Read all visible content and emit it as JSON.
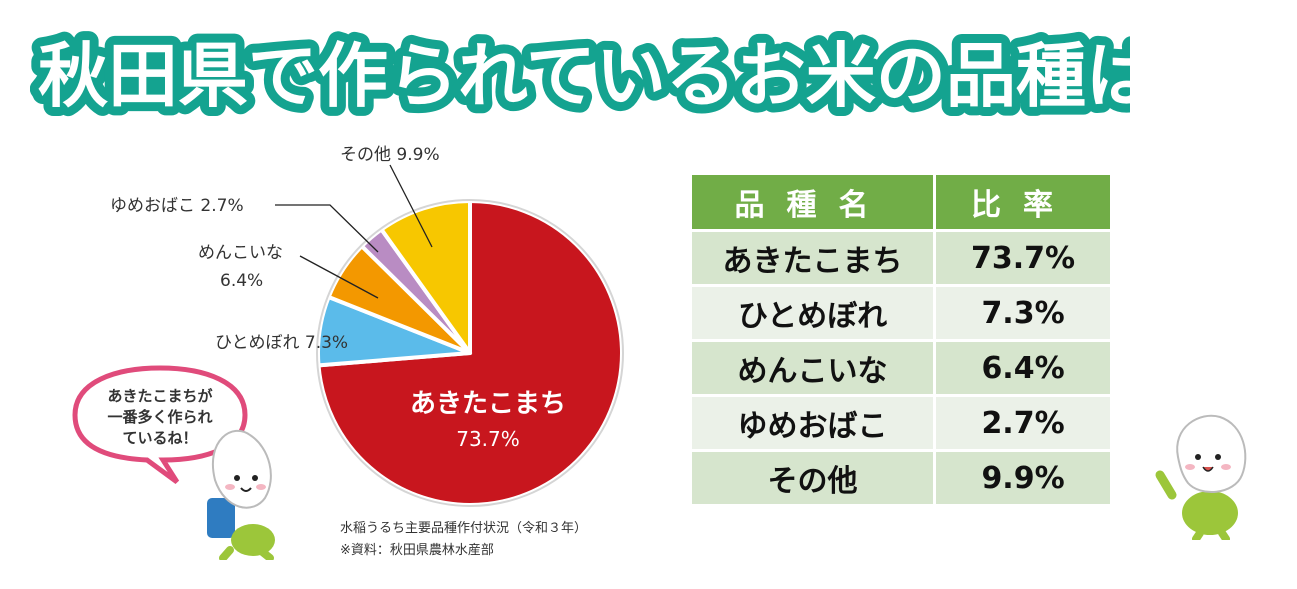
{
  "header": {
    "title": "秋田県で作られているお米の品種は？"
  },
  "chart_data": {
    "type": "pie",
    "slices": [
      {
        "label": "あきたこまち",
        "value": 73.7,
        "value_label": "73.7%",
        "color": "#c8161e"
      },
      {
        "label": "ひとめぼれ",
        "value": 7.3,
        "value_label": "7.3%",
        "color": "#5bbbea"
      },
      {
        "label": "めんこいな",
        "value": 6.4,
        "value_label": "6.4%",
        "color": "#f39800"
      },
      {
        "label": "ゆめおばこ",
        "value": 2.7,
        "value_label": "2.7%",
        "color": "#b98cc3"
      },
      {
        "label": "その他",
        "value": 9.9,
        "value_label": "9.9%",
        "color": "#f7c700"
      }
    ],
    "labels": {
      "akitakomachi_name": "あきたこまち",
      "akitakomachi_value": "73.7%",
      "hitomebore": "ひとめぼれ 7.3%",
      "menkoina_1": "めんこいな",
      "menkoina_2": "6.4%",
      "yumeobako": "ゆめおばこ 2.7%",
      "other": "その他 9.9%"
    },
    "source_1": "水稲うるち主要品種作付状況（令和３年）",
    "source_2": "※資料：秋田県農林水産部"
  },
  "speech_bubble": {
    "lines": [
      "あきたこまちが",
      "一番多く作られ",
      "ているね！"
    ]
  },
  "table": {
    "headers": [
      "品種名",
      "比率"
    ],
    "rows": [
      {
        "name": "あきたこまち",
        "ratio": "73.7%"
      },
      {
        "name": "ひとめぼれ",
        "ratio": "7.3%"
      },
      {
        "name": "めんこいな",
        "ratio": "6.4%"
      },
      {
        "name": "ゆめおばこ",
        "ratio": "2.7%"
      },
      {
        "name": "その他",
        "ratio": "9.9%"
      }
    ]
  },
  "colors": {
    "title_teal": "#14a390",
    "table_header": "#71ad47",
    "bubble_border": "#e04b7b"
  }
}
